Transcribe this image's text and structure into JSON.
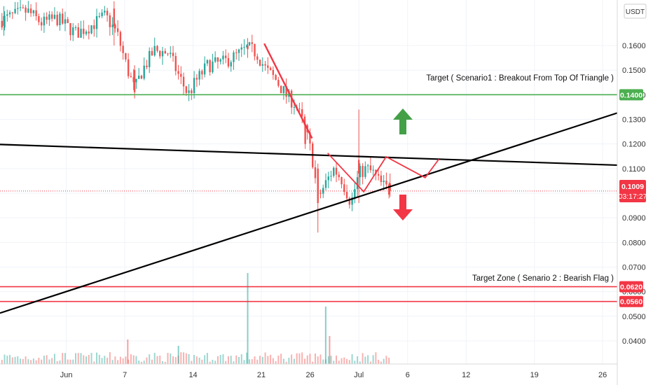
{
  "currency_label": "USDT",
  "current_price": {
    "value": "0.1009",
    "countdown": "03:17:27",
    "color": "#f23645"
  },
  "annotations": {
    "scenario1": "Target  ( Scenario1 : Breakout From Top Of Triangle )",
    "scenario2": "Target Zone ( Senario 2 : Bearish Flag )"
  },
  "colors": {
    "bull": "#26a69a",
    "bear": "#ef5350",
    "target_green": "#4caf50",
    "target_red": "#f23645",
    "arrow_up": "#43a047",
    "arrow_down": "#f23645",
    "path_red": "#f23645",
    "trendline": "#000000"
  },
  "chart_data": {
    "type": "candlestick",
    "y_axis": {
      "range": [
        0.0306,
        0.1785
      ],
      "ticks": [
        "0.1600",
        "0.1500",
        "0.1400",
        "0.1300",
        "0.1200",
        "0.1100",
        "0.1000",
        "0.0900",
        "0.0800",
        "0.0700",
        "0.0600",
        "0.0500",
        "0.0400"
      ],
      "scale": "linear",
      "position": "right"
    },
    "x_axis": {
      "ticks": [
        {
          "label": "Jun",
          "day": 1
        },
        {
          "label": "7",
          "day": 7
        },
        {
          "label": "14",
          "day": 14
        },
        {
          "label": "21",
          "day": 21
        },
        {
          "label": "26",
          "day": 26
        },
        {
          "label": "Jul",
          "day": 31
        },
        {
          "label": "6",
          "day": 36
        },
        {
          "label": "12",
          "day": 42
        },
        {
          "label": "19",
          "day": 49
        },
        {
          "label": "26",
          "day": 56
        }
      ],
      "range_days": [
        -5.8,
        57.5
      ]
    },
    "grid": true,
    "horizontal_levels": [
      {
        "price": 0.14,
        "label": "0.1400",
        "color": "#4caf50"
      },
      {
        "price": 0.062,
        "label": "0.0620",
        "color": "#f23645"
      },
      {
        "price": 0.056,
        "label": "0.0560",
        "color": "#f23645"
      }
    ],
    "trendlines": [
      {
        "name": "triangle-top",
        "from": [
          -5.8,
          0.1198
        ],
        "to": [
          57.5,
          0.1114
        ]
      },
      {
        "name": "triangle-bottom",
        "from": [
          -5.8,
          0.0513
        ],
        "to": [
          57.5,
          0.1326
        ]
      }
    ],
    "projection_path": [
      [
        27.8,
        0.1163
      ],
      [
        31.5,
        0.1006
      ],
      [
        33.8,
        0.1148
      ],
      [
        37.8,
        0.1063
      ],
      [
        39.2,
        0.1138
      ]
    ],
    "decline_path": [
      [
        21.3,
        0.1608
      ],
      [
        26.2,
        0.1223
      ]
    ],
    "key_candles": [
      {
        "day": -5.4,
        "open": 0.168,
        "high": 0.176,
        "low": 0.164,
        "close": 0.172
      },
      {
        "day": 5.9,
        "open": 0.175,
        "high": 0.178,
        "low": 0.16,
        "close": 0.168
      },
      {
        "day": 8.0,
        "open": 0.15,
        "high": 0.152,
        "low": 0.1385,
        "close": 0.141
      },
      {
        "day": 19.6,
        "open": 0.16,
        "high": 0.163,
        "low": 0.155,
        "close": 0.1585
      },
      {
        "day": 25.5,
        "open": 0.128,
        "high": 0.13,
        "low": 0.118,
        "close": 0.12
      },
      {
        "day": 26.8,
        "open": 0.11,
        "high": 0.112,
        "low": 0.084,
        "close": 0.096
      },
      {
        "day": 31.0,
        "open": 0.1135,
        "high": 0.134,
        "low": 0.096,
        "close": 0.108
      },
      {
        "day": 34.2,
        "open": 0.104,
        "high": 0.108,
        "low": 0.0985,
        "close": 0.1009
      }
    ]
  }
}
